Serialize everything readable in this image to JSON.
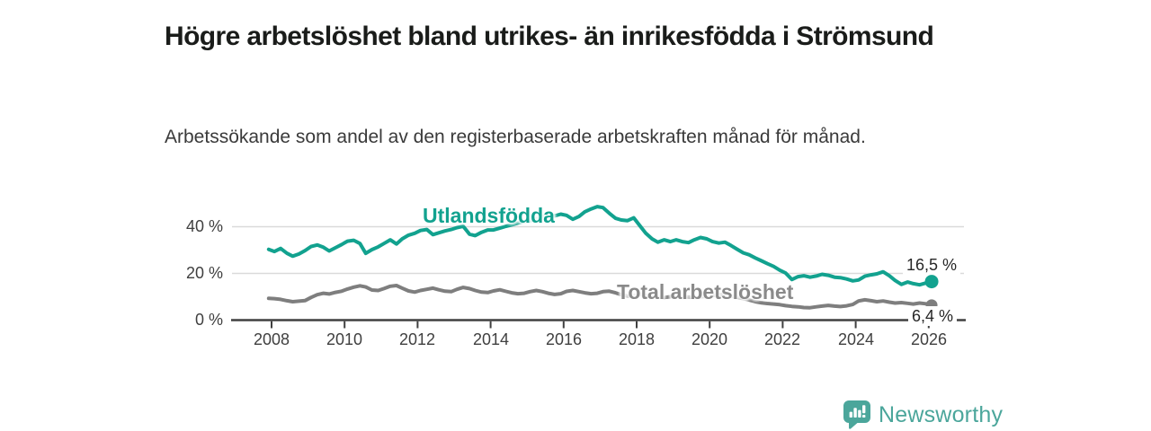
{
  "header": {
    "title": "Högre arbetslöshet bland utrikes- än inrikesfödda i Strömsund",
    "subtitle": "Arbetssökande som andel av den registerbaserade arbetskraften månad för månad."
  },
  "chart_data": {
    "type": "line",
    "title": "Högre arbetslöshet bland utrikes- än inrikesfödda i Strömsund",
    "subtitle": "Arbetssökande som andel av den registerbaserade arbetskraften månad för månad.",
    "xlabel": "",
    "ylabel": "",
    "unit": "%",
    "grid": "horizontal",
    "legend_position": "inline-labels",
    "x_range": [
      2007.75,
      2027
    ],
    "y_range": [
      0,
      50
    ],
    "x_ticks": [
      "2008",
      "2010",
      "2012",
      "2014",
      "2016",
      "2018",
      "2020",
      "2022",
      "2024",
      "2026"
    ],
    "y_ticks": [
      {
        "label": "0 %",
        "value": 0
      },
      {
        "label": "20 %",
        "value": 20
      },
      {
        "label": "40 %",
        "value": 40
      }
    ],
    "colors": {
      "axis": "#404040",
      "gridline": "#dadada"
    },
    "series": [
      {
        "name": "Utlandsfödda",
        "color": "#12a28f",
        "end_label": "16,5 %",
        "end_value": 16.5,
        "points": [
          [
            2007.92,
            30.3
          ],
          [
            2008.08,
            29.4
          ],
          [
            2008.25,
            30.7
          ],
          [
            2008.42,
            28.6
          ],
          [
            2008.58,
            27.4
          ],
          [
            2008.75,
            28.3
          ],
          [
            2008.92,
            29.8
          ],
          [
            2009.08,
            31.5
          ],
          [
            2009.25,
            32.2
          ],
          [
            2009.42,
            31.2
          ],
          [
            2009.58,
            29.6
          ],
          [
            2009.75,
            31.0
          ],
          [
            2009.92,
            32.4
          ],
          [
            2010.08,
            33.8
          ],
          [
            2010.25,
            34.2
          ],
          [
            2010.42,
            32.8
          ],
          [
            2010.58,
            28.6
          ],
          [
            2010.75,
            30.2
          ],
          [
            2010.92,
            31.4
          ],
          [
            2011.08,
            32.8
          ],
          [
            2011.25,
            34.4
          ],
          [
            2011.42,
            32.6
          ],
          [
            2011.58,
            34.8
          ],
          [
            2011.75,
            36.4
          ],
          [
            2011.92,
            37.2
          ],
          [
            2012.08,
            38.4
          ],
          [
            2012.25,
            38.8
          ],
          [
            2012.42,
            36.6
          ],
          [
            2012.58,
            37.4
          ],
          [
            2012.75,
            38.2
          ],
          [
            2012.92,
            38.8
          ],
          [
            2013.08,
            39.6
          ],
          [
            2013.25,
            40.2
          ],
          [
            2013.42,
            36.8
          ],
          [
            2013.58,
            36.2
          ],
          [
            2013.75,
            37.6
          ],
          [
            2013.92,
            38.6
          ],
          [
            2014.08,
            38.6
          ],
          [
            2014.25,
            39.4
          ],
          [
            2014.42,
            40.2
          ],
          [
            2014.58,
            40.8
          ],
          [
            2014.75,
            41.6
          ],
          [
            2014.92,
            42.2
          ],
          [
            2015.08,
            42.6
          ],
          [
            2015.25,
            43.4
          ],
          [
            2015.42,
            44.4
          ],
          [
            2015.58,
            45.2
          ],
          [
            2015.75,
            44.6
          ],
          [
            2015.92,
            45.4
          ],
          [
            2016.08,
            44.9
          ],
          [
            2016.25,
            43.2
          ],
          [
            2016.42,
            44.4
          ],
          [
            2016.58,
            46.4
          ],
          [
            2016.75,
            47.6
          ],
          [
            2016.92,
            48.6
          ],
          [
            2017.08,
            48.2
          ],
          [
            2017.25,
            45.8
          ],
          [
            2017.42,
            43.6
          ],
          [
            2017.58,
            42.9
          ],
          [
            2017.75,
            42.6
          ],
          [
            2017.92,
            43.8
          ],
          [
            2018.08,
            40.6
          ],
          [
            2018.25,
            37.2
          ],
          [
            2018.42,
            34.8
          ],
          [
            2018.58,
            33.4
          ],
          [
            2018.75,
            34.4
          ],
          [
            2018.92,
            33.6
          ],
          [
            2019.08,
            34.4
          ],
          [
            2019.25,
            33.6
          ],
          [
            2019.42,
            33.2
          ],
          [
            2019.58,
            34.4
          ],
          [
            2019.75,
            35.4
          ],
          [
            2019.92,
            34.8
          ],
          [
            2020.08,
            33.6
          ],
          [
            2020.25,
            33.0
          ],
          [
            2020.42,
            33.4
          ],
          [
            2020.58,
            32.0
          ],
          [
            2020.75,
            30.4
          ],
          [
            2020.92,
            28.8
          ],
          [
            2021.08,
            28.0
          ],
          [
            2021.25,
            26.6
          ],
          [
            2021.42,
            25.4
          ],
          [
            2021.58,
            24.2
          ],
          [
            2021.75,
            23.0
          ],
          [
            2021.92,
            21.4
          ],
          [
            2022.08,
            20.2
          ],
          [
            2022.25,
            17.4
          ],
          [
            2022.42,
            18.6
          ],
          [
            2022.58,
            19.0
          ],
          [
            2022.75,
            18.4
          ],
          [
            2022.92,
            18.9
          ],
          [
            2023.08,
            19.6
          ],
          [
            2023.25,
            19.2
          ],
          [
            2023.42,
            18.4
          ],
          [
            2023.58,
            18.2
          ],
          [
            2023.75,
            17.6
          ],
          [
            2023.92,
            16.8
          ],
          [
            2024.08,
            17.2
          ],
          [
            2024.25,
            18.8
          ],
          [
            2024.42,
            19.4
          ],
          [
            2024.58,
            19.8
          ],
          [
            2024.75,
            20.7
          ],
          [
            2024.92,
            19.0
          ],
          [
            2025.08,
            17.0
          ],
          [
            2025.25,
            15.3
          ],
          [
            2025.42,
            16.3
          ],
          [
            2025.58,
            15.6
          ],
          [
            2025.75,
            15.1
          ],
          [
            2025.92,
            15.9
          ],
          [
            2026.08,
            16.5
          ]
        ]
      },
      {
        "name": "Total arbetslöshet",
        "color": "#7e7e7e",
        "end_label": "6,4 %",
        "end_value": 6.4,
        "points": [
          [
            2007.92,
            9.3
          ],
          [
            2008.08,
            9.2
          ],
          [
            2008.25,
            8.9
          ],
          [
            2008.42,
            8.3
          ],
          [
            2008.58,
            7.9
          ],
          [
            2008.75,
            8.1
          ],
          [
            2008.92,
            8.4
          ],
          [
            2009.08,
            9.7
          ],
          [
            2009.25,
            10.9
          ],
          [
            2009.42,
            11.5
          ],
          [
            2009.58,
            11.2
          ],
          [
            2009.75,
            11.9
          ],
          [
            2009.92,
            12.4
          ],
          [
            2010.08,
            13.3
          ],
          [
            2010.25,
            14.1
          ],
          [
            2010.42,
            14.7
          ],
          [
            2010.58,
            14.2
          ],
          [
            2010.75,
            12.9
          ],
          [
            2010.92,
            12.7
          ],
          [
            2011.08,
            13.5
          ],
          [
            2011.25,
            14.5
          ],
          [
            2011.42,
            14.8
          ],
          [
            2011.58,
            13.7
          ],
          [
            2011.75,
            12.5
          ],
          [
            2011.92,
            12.0
          ],
          [
            2012.08,
            12.7
          ],
          [
            2012.25,
            13.2
          ],
          [
            2012.42,
            13.7
          ],
          [
            2012.58,
            13.0
          ],
          [
            2012.75,
            12.4
          ],
          [
            2012.92,
            12.2
          ],
          [
            2013.08,
            13.2
          ],
          [
            2013.25,
            14.0
          ],
          [
            2013.42,
            13.5
          ],
          [
            2013.58,
            12.7
          ],
          [
            2013.75,
            12.0
          ],
          [
            2013.92,
            11.8
          ],
          [
            2014.08,
            12.5
          ],
          [
            2014.25,
            13.0
          ],
          [
            2014.42,
            12.3
          ],
          [
            2014.58,
            11.7
          ],
          [
            2014.75,
            11.3
          ],
          [
            2014.92,
            11.5
          ],
          [
            2015.08,
            12.2
          ],
          [
            2015.25,
            12.7
          ],
          [
            2015.42,
            12.2
          ],
          [
            2015.58,
            11.5
          ],
          [
            2015.75,
            11.0
          ],
          [
            2015.92,
            11.3
          ],
          [
            2016.08,
            12.3
          ],
          [
            2016.25,
            12.7
          ],
          [
            2016.42,
            12.2
          ],
          [
            2016.58,
            11.7
          ],
          [
            2016.75,
            11.3
          ],
          [
            2016.92,
            11.5
          ],
          [
            2017.08,
            12.2
          ],
          [
            2017.25,
            12.4
          ],
          [
            2017.42,
            11.7
          ],
          [
            2017.58,
            10.9
          ],
          [
            2017.75,
            10.3
          ],
          [
            2017.92,
            10.5
          ],
          [
            2018.08,
            11.0
          ],
          [
            2018.25,
            10.7
          ],
          [
            2018.42,
            10.2
          ],
          [
            2018.58,
            9.9
          ],
          [
            2018.75,
            9.7
          ],
          [
            2018.92,
            10.0
          ],
          [
            2019.08,
            10.4
          ],
          [
            2019.25,
            10.2
          ],
          [
            2019.42,
            9.9
          ],
          [
            2019.58,
            9.7
          ],
          [
            2019.75,
            10.0
          ],
          [
            2019.92,
            10.2
          ],
          [
            2020.08,
            10.5
          ],
          [
            2020.25,
            10.9
          ],
          [
            2020.42,
            11.0
          ],
          [
            2020.58,
            10.4
          ],
          [
            2020.75,
            9.8
          ],
          [
            2020.92,
            9.2
          ],
          [
            2021.08,
            8.6
          ],
          [
            2021.25,
            7.9
          ],
          [
            2021.42,
            7.4
          ],
          [
            2021.58,
            7.1
          ],
          [
            2021.75,
            6.9
          ],
          [
            2021.92,
            6.6
          ],
          [
            2022.08,
            6.2
          ],
          [
            2022.25,
            5.9
          ],
          [
            2022.42,
            5.7
          ],
          [
            2022.58,
            5.4
          ],
          [
            2022.75,
            5.3
          ],
          [
            2022.92,
            5.7
          ],
          [
            2023.08,
            6.0
          ],
          [
            2023.25,
            6.3
          ],
          [
            2023.42,
            6.0
          ],
          [
            2023.58,
            5.8
          ],
          [
            2023.75,
            6.1
          ],
          [
            2023.92,
            6.7
          ],
          [
            2024.08,
            8.2
          ],
          [
            2024.25,
            8.7
          ],
          [
            2024.42,
            8.3
          ],
          [
            2024.58,
            7.9
          ],
          [
            2024.75,
            8.2
          ],
          [
            2024.92,
            7.7
          ],
          [
            2025.08,
            7.3
          ],
          [
            2025.25,
            7.5
          ],
          [
            2025.42,
            7.2
          ],
          [
            2025.58,
            6.9
          ],
          [
            2025.75,
            7.3
          ],
          [
            2025.92,
            7.0
          ],
          [
            2026.08,
            6.4
          ]
        ]
      }
    ]
  },
  "branding": {
    "name": "Newsworthy",
    "color": "#4ba69b",
    "icon": "chart-speech-bubble-icon"
  }
}
